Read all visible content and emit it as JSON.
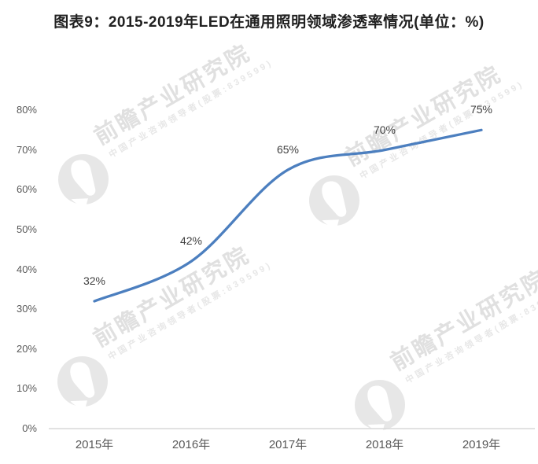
{
  "page_title": "图表9：2015-2019年LED在通用照明领域渗透率情况(单位：%)",
  "chart_data": {
    "type": "line",
    "title": "图表9：2015-2019年LED在通用照明领域渗透率情况(单位：%)",
    "unit": "%",
    "categories": [
      "2015年",
      "2016年",
      "2017年",
      "2018年",
      "2019年"
    ],
    "series": [
      {
        "name": "LED在通用照明领域渗透率",
        "values": [
          32,
          42,
          65,
          70,
          75
        ]
      }
    ],
    "data_labels": [
      "32%",
      "42%",
      "65%",
      "70%",
      "75%"
    ],
    "xlabel": "",
    "ylabel": "",
    "ylim": [
      0,
      80
    ],
    "ytick_step": 10,
    "ytick_labels": [
      "0%",
      "10%",
      "20%",
      "30%",
      "40%",
      "50%",
      "60%",
      "70%",
      "80%"
    ],
    "grid": false,
    "legend": "none",
    "smooth": true,
    "line_color": "#4c7fbf",
    "axis_color": "#d9d9d9",
    "tick_label_color": "#595959",
    "data_label_color": "#3f3f3f"
  },
  "watermark": {
    "brand": "前瞻产业研究院",
    "tagline": "中国产业咨询领导者(股票:839599)",
    "logo": "qianzhan-logo",
    "color": "#e0e0e0"
  }
}
